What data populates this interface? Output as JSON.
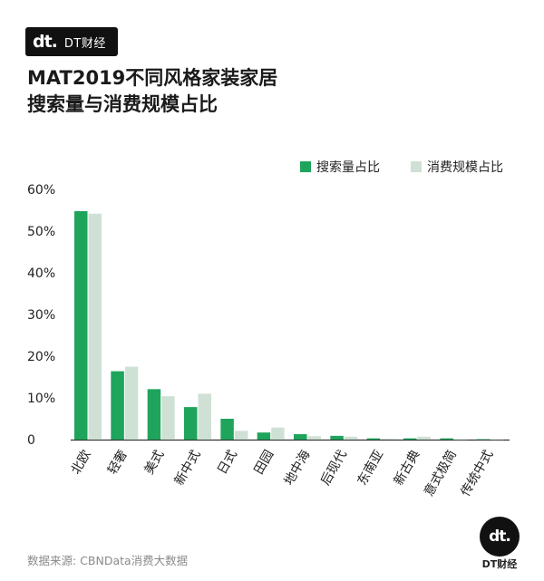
{
  "brand": {
    "mark": "dt.",
    "name": "DT财经"
  },
  "title_lines": [
    "MAT2019不同风格家装家居",
    "搜索量与消费规模占比"
  ],
  "source": "数据来源: CBNData消费大数据",
  "logo": {
    "mark": "dt.",
    "name": "DT财经"
  },
  "colors": {
    "search": "#1fa45c",
    "consumption": "#cfe1d5",
    "axis": "#333333"
  },
  "chart_data": {
    "type": "bar",
    "categories": [
      "北欧",
      "轻奢",
      "美式",
      "新中式",
      "日式",
      "田园",
      "地中海",
      "后现代",
      "东南亚",
      "新古典",
      "意式极简",
      "传统中式"
    ],
    "series": [
      {
        "name": "搜索量占比",
        "values": [
          54.8,
          16.4,
          12.1,
          7.8,
          5.0,
          1.7,
          1.3,
          0.9,
          0.3,
          0.3,
          0.3,
          0.1
        ]
      },
      {
        "name": "消费规模占比",
        "values": [
          54.2,
          17.5,
          10.4,
          11.0,
          2.1,
          2.9,
          0.8,
          0.7,
          0.2,
          0.7,
          0.1,
          0.1
        ]
      }
    ],
    "y_ticks": [
      "0",
      "10%",
      "20%",
      "30%",
      "40%",
      "50%",
      "60%"
    ],
    "ylim": [
      0,
      60
    ],
    "legend_position": "top-right",
    "grid": false
  }
}
